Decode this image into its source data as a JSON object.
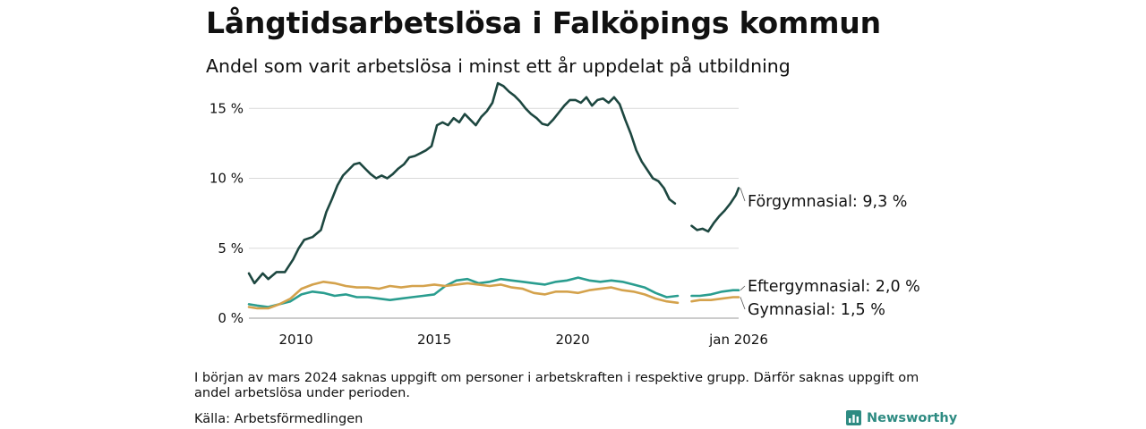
{
  "title": "Långtidsarbetslösa i Falköpings kommun",
  "subtitle": "Andel som varit arbetslösa i minst ett år uppdelat på utbildning",
  "note": "I början av mars 2024 saknas uppgift om personer i arbetskraften i respektive grupp. Därför saknas uppgift om andel arbetslösa under perioden.",
  "source": "Källa: Arbetsförmedlingen",
  "brand": {
    "name": "Newsworthy",
    "icon": "bar-chart-icon",
    "color": "#2e8b82"
  },
  "chart_data": {
    "type": "line",
    "title": "Långtidsarbetslösa i Falköpings kommun",
    "xlabel": "",
    "ylabel": "",
    "x_range": [
      2008.3,
      2026.0
    ],
    "ylim": [
      0,
      17
    ],
    "y_ticks": [
      0,
      5,
      10,
      15
    ],
    "y_tick_labels": [
      "0 %",
      "5 %",
      "10 %",
      "15 %"
    ],
    "x_ticks": [
      2010,
      2015,
      2020,
      2026.0
    ],
    "x_tick_labels": [
      "2010",
      "2015",
      "2020",
      "jan 2026"
    ],
    "grid": true,
    "gap": [
      2023.9,
      2024.3
    ],
    "series": [
      {
        "name": "Förgymnasial",
        "end_label": "Förgymnasial: 9,3 %",
        "color": "#1d4740",
        "points": [
          [
            2008.3,
            3.2
          ],
          [
            2008.5,
            2.5
          ],
          [
            2008.8,
            3.2
          ],
          [
            2009.0,
            2.8
          ],
          [
            2009.3,
            3.3
          ],
          [
            2009.6,
            3.3
          ],
          [
            2009.9,
            4.2
          ],
          [
            2010.1,
            5.0
          ],
          [
            2010.3,
            5.6
          ],
          [
            2010.6,
            5.8
          ],
          [
            2010.9,
            6.3
          ],
          [
            2011.1,
            7.6
          ],
          [
            2011.3,
            8.5
          ],
          [
            2011.5,
            9.5
          ],
          [
            2011.7,
            10.2
          ],
          [
            2011.9,
            10.6
          ],
          [
            2012.1,
            11.0
          ],
          [
            2012.3,
            11.1
          ],
          [
            2012.5,
            10.7
          ],
          [
            2012.7,
            10.3
          ],
          [
            2012.9,
            10.0
          ],
          [
            2013.1,
            10.2
          ],
          [
            2013.3,
            10.0
          ],
          [
            2013.5,
            10.3
          ],
          [
            2013.7,
            10.7
          ],
          [
            2013.9,
            11.0
          ],
          [
            2014.1,
            11.5
          ],
          [
            2014.3,
            11.6
          ],
          [
            2014.5,
            11.8
          ],
          [
            2014.7,
            12.0
          ],
          [
            2014.9,
            12.3
          ],
          [
            2015.1,
            13.8
          ],
          [
            2015.3,
            14.0
          ],
          [
            2015.5,
            13.8
          ],
          [
            2015.7,
            14.3
          ],
          [
            2015.9,
            14.0
          ],
          [
            2016.1,
            14.6
          ],
          [
            2016.3,
            14.2
          ],
          [
            2016.5,
            13.8
          ],
          [
            2016.7,
            14.4
          ],
          [
            2016.9,
            14.8
          ],
          [
            2017.1,
            15.4
          ],
          [
            2017.3,
            16.8
          ],
          [
            2017.5,
            16.6
          ],
          [
            2017.7,
            16.2
          ],
          [
            2017.9,
            15.9
          ],
          [
            2018.1,
            15.5
          ],
          [
            2018.3,
            15.0
          ],
          [
            2018.5,
            14.6
          ],
          [
            2018.7,
            14.3
          ],
          [
            2018.9,
            13.9
          ],
          [
            2019.1,
            13.8
          ],
          [
            2019.3,
            14.2
          ],
          [
            2019.5,
            14.7
          ],
          [
            2019.7,
            15.2
          ],
          [
            2019.9,
            15.6
          ],
          [
            2020.1,
            15.6
          ],
          [
            2020.3,
            15.4
          ],
          [
            2020.5,
            15.8
          ],
          [
            2020.7,
            15.2
          ],
          [
            2020.9,
            15.6
          ],
          [
            2021.1,
            15.7
          ],
          [
            2021.3,
            15.4
          ],
          [
            2021.5,
            15.8
          ],
          [
            2021.7,
            15.3
          ],
          [
            2021.9,
            14.2
          ],
          [
            2022.1,
            13.2
          ],
          [
            2022.3,
            12.0
          ],
          [
            2022.5,
            11.2
          ],
          [
            2022.7,
            10.6
          ],
          [
            2022.9,
            10.0
          ],
          [
            2023.1,
            9.8
          ],
          [
            2023.3,
            9.3
          ],
          [
            2023.5,
            8.5
          ],
          [
            2023.7,
            8.2
          ],
          [
            null,
            null
          ],
          [
            2024.3,
            6.6
          ],
          [
            2024.5,
            6.3
          ],
          [
            2024.7,
            6.4
          ],
          [
            2024.9,
            6.2
          ],
          [
            2025.1,
            6.8
          ],
          [
            2025.3,
            7.3
          ],
          [
            2025.5,
            7.7
          ],
          [
            2025.7,
            8.2
          ],
          [
            2025.9,
            8.8
          ],
          [
            2026.0,
            9.3
          ]
        ]
      },
      {
        "name": "Eftergymnasial",
        "end_label": "Eftergymnasial: 2,0 %",
        "color": "#2a9d8f",
        "points": [
          [
            2008.3,
            1.0
          ],
          [
            2008.6,
            0.9
          ],
          [
            2009.0,
            0.8
          ],
          [
            2009.4,
            1.0
          ],
          [
            2009.8,
            1.2
          ],
          [
            2010.2,
            1.7
          ],
          [
            2010.6,
            1.9
          ],
          [
            2011.0,
            1.8
          ],
          [
            2011.4,
            1.6
          ],
          [
            2011.8,
            1.7
          ],
          [
            2012.2,
            1.5
          ],
          [
            2012.6,
            1.5
          ],
          [
            2013.0,
            1.4
          ],
          [
            2013.4,
            1.3
          ],
          [
            2013.8,
            1.4
          ],
          [
            2014.2,
            1.5
          ],
          [
            2014.6,
            1.6
          ],
          [
            2015.0,
            1.7
          ],
          [
            2015.4,
            2.3
          ],
          [
            2015.8,
            2.7
          ],
          [
            2016.2,
            2.8
          ],
          [
            2016.6,
            2.5
          ],
          [
            2017.0,
            2.6
          ],
          [
            2017.4,
            2.8
          ],
          [
            2017.8,
            2.7
          ],
          [
            2018.2,
            2.6
          ],
          [
            2018.6,
            2.5
          ],
          [
            2019.0,
            2.4
          ],
          [
            2019.4,
            2.6
          ],
          [
            2019.8,
            2.7
          ],
          [
            2020.2,
            2.9
          ],
          [
            2020.6,
            2.7
          ],
          [
            2021.0,
            2.6
          ],
          [
            2021.4,
            2.7
          ],
          [
            2021.8,
            2.6
          ],
          [
            2022.2,
            2.4
          ],
          [
            2022.6,
            2.2
          ],
          [
            2023.0,
            1.8
          ],
          [
            2023.4,
            1.5
          ],
          [
            2023.8,
            1.6
          ],
          [
            null,
            null
          ],
          [
            2024.3,
            1.6
          ],
          [
            2024.6,
            1.6
          ],
          [
            2025.0,
            1.7
          ],
          [
            2025.4,
            1.9
          ],
          [
            2025.8,
            2.0
          ],
          [
            2026.0,
            2.0
          ]
        ]
      },
      {
        "name": "Gymnasial",
        "end_label": "Gymnasial: 1,5 %",
        "color": "#d4a24c",
        "points": [
          [
            2008.3,
            0.8
          ],
          [
            2008.6,
            0.7
          ],
          [
            2009.0,
            0.7
          ],
          [
            2009.4,
            1.0
          ],
          [
            2009.8,
            1.4
          ],
          [
            2010.2,
            2.1
          ],
          [
            2010.6,
            2.4
          ],
          [
            2011.0,
            2.6
          ],
          [
            2011.4,
            2.5
          ],
          [
            2011.8,
            2.3
          ],
          [
            2012.2,
            2.2
          ],
          [
            2012.6,
            2.2
          ],
          [
            2013.0,
            2.1
          ],
          [
            2013.4,
            2.3
          ],
          [
            2013.8,
            2.2
          ],
          [
            2014.2,
            2.3
          ],
          [
            2014.6,
            2.3
          ],
          [
            2015.0,
            2.4
          ],
          [
            2015.4,
            2.3
          ],
          [
            2015.8,
            2.4
          ],
          [
            2016.2,
            2.5
          ],
          [
            2016.6,
            2.4
          ],
          [
            2017.0,
            2.3
          ],
          [
            2017.4,
            2.4
          ],
          [
            2017.8,
            2.2
          ],
          [
            2018.2,
            2.1
          ],
          [
            2018.6,
            1.8
          ],
          [
            2019.0,
            1.7
          ],
          [
            2019.4,
            1.9
          ],
          [
            2019.8,
            1.9
          ],
          [
            2020.2,
            1.8
          ],
          [
            2020.6,
            2.0
          ],
          [
            2021.0,
            2.1
          ],
          [
            2021.4,
            2.2
          ],
          [
            2021.8,
            2.0
          ],
          [
            2022.2,
            1.9
          ],
          [
            2022.6,
            1.7
          ],
          [
            2023.0,
            1.4
          ],
          [
            2023.4,
            1.2
          ],
          [
            2023.8,
            1.1
          ],
          [
            null,
            null
          ],
          [
            2024.3,
            1.2
          ],
          [
            2024.6,
            1.3
          ],
          [
            2025.0,
            1.3
          ],
          [
            2025.4,
            1.4
          ],
          [
            2025.8,
            1.5
          ],
          [
            2026.0,
            1.5
          ]
        ]
      }
    ]
  }
}
